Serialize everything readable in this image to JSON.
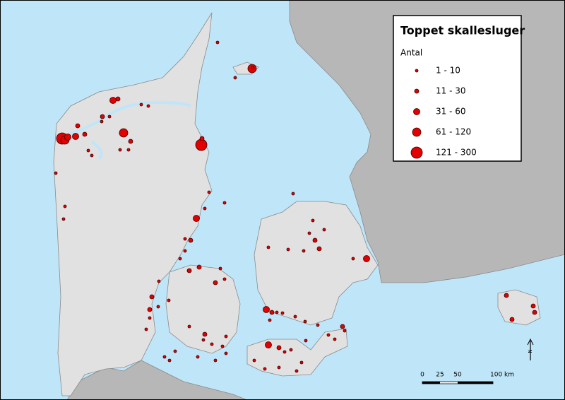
{
  "map": {
    "title": "Toppet skallesluger",
    "legend": {
      "title": "Antal",
      "classes": [
        "1 - 10",
        "11 - 30",
        "31 - 60",
        "61 - 120",
        "121 - 300"
      ]
    },
    "scale_bar": {
      "labels": [
        "0",
        "25",
        "50",
        "100 km"
      ]
    },
    "north_arrow": "N"
  }
}
